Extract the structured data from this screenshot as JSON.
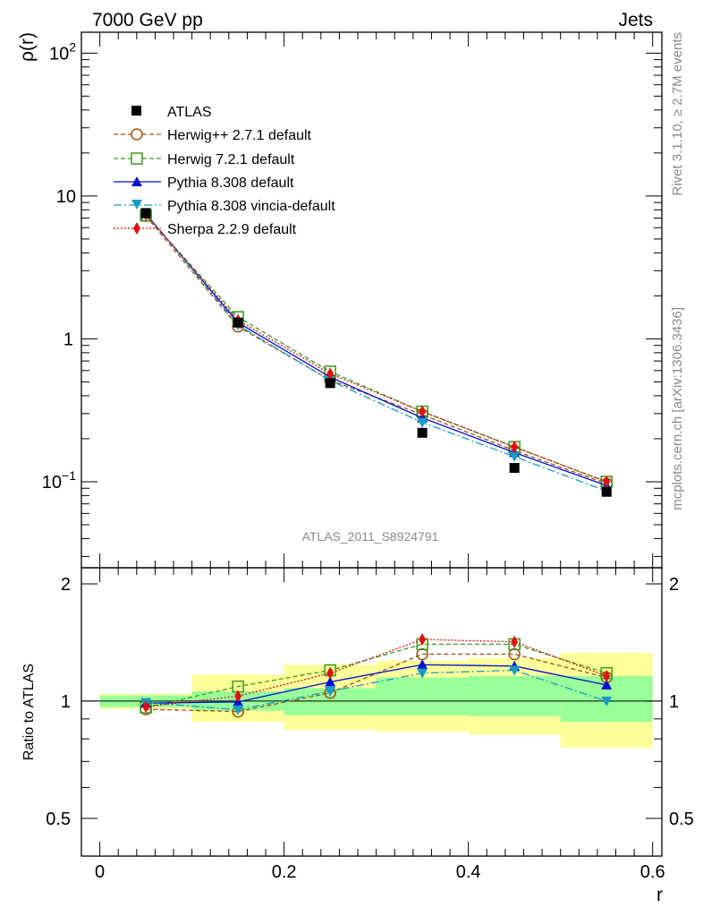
{
  "header": {
    "left": "7000 GeV pp",
    "right": "Jets"
  },
  "side": {
    "upper": "Rivet 3.1.10, ≥ 2.7M events",
    "lower": "mcplots.cern.ch [arXiv:1306.3436]"
  },
  "watermark": "ATLAS_2011_S8924791",
  "chart_data": {
    "type": "line",
    "title": "",
    "xlabel": "r",
    "ylabel": "ρ(r)",
    "ratio_ylabel": "Ratio to ATLAS",
    "xlim": [
      -0.02,
      0.61
    ],
    "ylim": [
      0.025,
      140
    ],
    "yscale": "log",
    "ratio_ylim": [
      0.4,
      2.2
    ],
    "x": [
      0.05,
      0.15,
      0.25,
      0.35,
      0.45,
      0.55
    ],
    "x_bins": [
      [
        0.0,
        0.1
      ],
      [
        0.1,
        0.2
      ],
      [
        0.2,
        0.3
      ],
      [
        0.3,
        0.4
      ],
      [
        0.4,
        0.5
      ],
      [
        0.5,
        0.6
      ]
    ],
    "xticks": [
      "0",
      "0.2",
      "0.4",
      "0.6"
    ],
    "yticks_main": [
      "10−1",
      "1",
      "10",
      "10²"
    ],
    "yticks_ratio": [
      "0.5",
      "1",
      "2"
    ],
    "data": {
      "name": "ATLAS",
      "values": [
        7.6,
        1.3,
        0.49,
        0.22,
        0.125,
        0.085
      ],
      "color": "#000000"
    },
    "series": [
      {
        "name": "Herwig++ 2.7.1 default",
        "color": "#a0520f",
        "marker": "circle-open",
        "dash": "5,3",
        "values": [
          7.25,
          1.22,
          0.515,
          0.295,
          0.165,
          0.097
        ],
        "ratio": [
          0.953,
          0.94,
          1.05,
          1.32,
          1.32,
          1.15
        ]
      },
      {
        "name": "Herwig 7.2.1 default",
        "color": "#3a9a1a",
        "marker": "square-open",
        "dash": "5,3",
        "values": [
          7.3,
          1.42,
          0.59,
          0.31,
          0.175,
          0.1
        ],
        "ratio": [
          0.963,
          1.09,
          1.2,
          1.4,
          1.4,
          1.18
        ]
      },
      {
        "name": "Pythia 8.308 default",
        "color": "#0010d0",
        "marker": "triangle-up",
        "dash": "",
        "values": [
          7.5,
          1.3,
          0.54,
          0.28,
          0.16,
          0.094
        ],
        "ratio": [
          0.988,
          0.995,
          1.12,
          1.24,
          1.23,
          1.1
        ]
      },
      {
        "name": "Pythia 8.308 vincia-default",
        "color": "#1a9ac8",
        "marker": "triangle-down",
        "dash": "9,3,2,3",
        "values": [
          7.55,
          1.25,
          0.51,
          0.26,
          0.15,
          0.086
        ],
        "ratio": [
          0.992,
          0.95,
          1.06,
          1.18,
          1.2,
          1.0
        ]
      },
      {
        "name": "Sherpa 2.2.9 default",
        "color": "#e01010",
        "marker": "diamond",
        "dash": "2,2",
        "values": [
          7.4,
          1.35,
          0.57,
          0.31,
          0.175,
          0.1
        ],
        "ratio": [
          0.968,
          1.03,
          1.18,
          1.44,
          1.42,
          1.16
        ]
      }
    ],
    "bands": {
      "stat": [
        [
          0.965,
          1.035
        ],
        [
          0.945,
          1.06
        ],
        [
          0.92,
          1.08
        ],
        [
          0.92,
          1.15
        ],
        [
          0.915,
          1.16
        ],
        [
          0.885,
          1.16
        ]
      ],
      "total": [
        [
          0.955,
          1.045
        ],
        [
          0.885,
          1.17
        ],
        [
          0.845,
          1.24
        ],
        [
          0.835,
          1.27
        ],
        [
          0.82,
          1.29
        ],
        [
          0.76,
          1.33
        ]
      ]
    },
    "legend": "upper-left",
    "grid": false
  }
}
